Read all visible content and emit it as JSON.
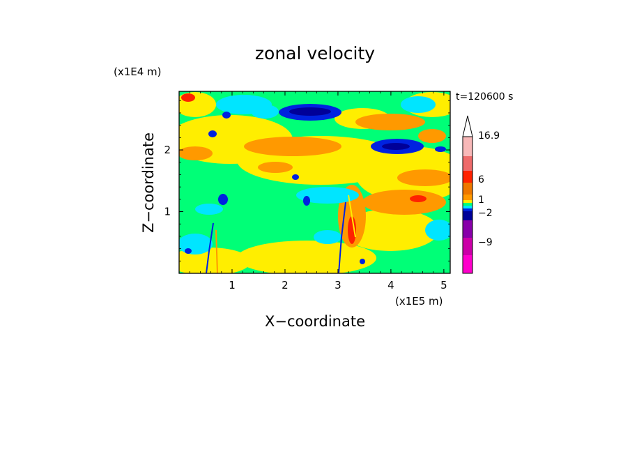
{
  "chart_data": {
    "type": "heatmap",
    "title": "zonal velocity",
    "time_label": "t=120600 s",
    "xlabel": "X−coordinate",
    "ylabel": "Z−coordinate",
    "x_scale_label": "(x1E5 m)",
    "y_scale_label": "(x1E4 m)",
    "xlim": [
      0.0,
      5.12
    ],
    "ylim": [
      0.0,
      2.95
    ],
    "x_ticks": [
      {
        "value": 1,
        "label": "1"
      },
      {
        "value": 2,
        "label": "2"
      },
      {
        "value": 3,
        "label": "3"
      },
      {
        "value": 4,
        "label": "4"
      },
      {
        "value": 5,
        "label": "5"
      }
    ],
    "y_ticks": [
      {
        "value": 1,
        "label": "1"
      },
      {
        "value": 2,
        "label": "2"
      }
    ],
    "colorbar": {
      "levels": [
        "#ff00cc",
        "#cc00a8",
        "#8800aa",
        "#000099",
        "#0022e0",
        "#00e5ff",
        "#00ff77",
        "#ffee00",
        "#ff9900",
        "#ee7700",
        "#ff2200",
        "#ee6a6a",
        "#f8b8b8",
        "#ffffff"
      ],
      "labels": [
        "16.9",
        "6",
        "1",
        "−2",
        "−9"
      ]
    },
    "features": [
      {
        "color": "#0022e0",
        "x": 2.5,
        "z": 2.65
      },
      {
        "color": "#0022e0",
        "x": 4.1,
        "z": 2.0
      },
      {
        "color": "#ff9900",
        "x": 3.9,
        "z": 2.5
      },
      {
        "color": "#ff9900",
        "x": 4.2,
        "z": 1.2
      },
      {
        "color": "#00e5ff",
        "x": 0.6,
        "z": 1.0
      }
    ]
  }
}
